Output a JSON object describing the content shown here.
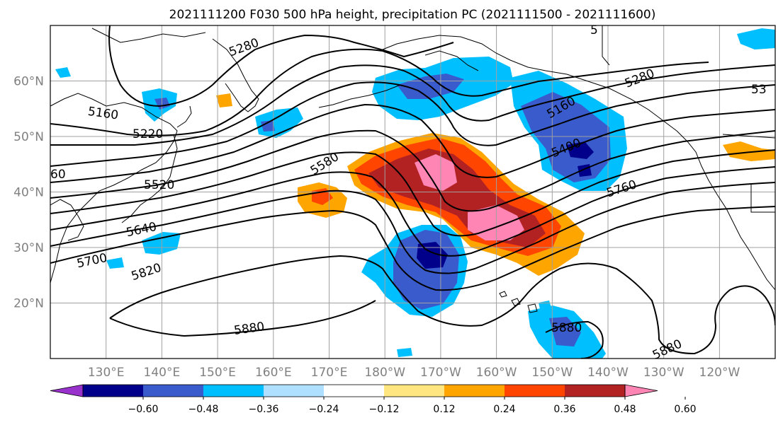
{
  "title": "2021111200 F030 500 hPa height, precipitation PC (2021111500 - 2021111600)",
  "lat_ticks": [
    "20°N",
    "30°N",
    "40°N",
    "50°N",
    "60°N"
  ],
  "lon_ticks": [
    "130°E",
    "140°E",
    "150°E",
    "160°E",
    "170°E",
    "180°W",
    "170°W",
    "160°W",
    "150°W",
    "140°W",
    "130°W",
    "120°W"
  ],
  "map": {
    "lon_range": [
      120,
      250
    ],
    "lat_range": [
      10,
      70
    ],
    "projection": "PlateCarree",
    "grid": true
  },
  "colorbar": {
    "tick_labels": [
      "−0.60",
      "−0.48",
      "−0.36",
      "−0.24",
      "−0.12",
      "0.12",
      "0.24",
      "0.36",
      "0.48",
      "0.60"
    ],
    "colors": [
      "#9932cc",
      "#00008b",
      "#3a5bcc",
      "#00bfff",
      "#b0e0ff",
      "#ffffff",
      "#ffe680",
      "#ffa500",
      "#ff4500",
      "#b22222",
      "#ff85b5"
    ],
    "extend": "both"
  },
  "contour_labels": {
    "c5280": "5280",
    "c5160": "5160",
    "c5220": "5220",
    "c5580": "5580",
    "c5520": "5520",
    "c5460_partial": "60",
    "c5640": "5640",
    "c5700": "5700",
    "c5820": "5820",
    "c5880_a": "5880",
    "c5880_b": "5880",
    "c5880_c": "5880",
    "c5400": "5400",
    "c5160_e": "5160",
    "c5760": "5760",
    "c5280_e": "5280",
    "c53_partial": "53",
    "c5_partial": "5"
  }
}
